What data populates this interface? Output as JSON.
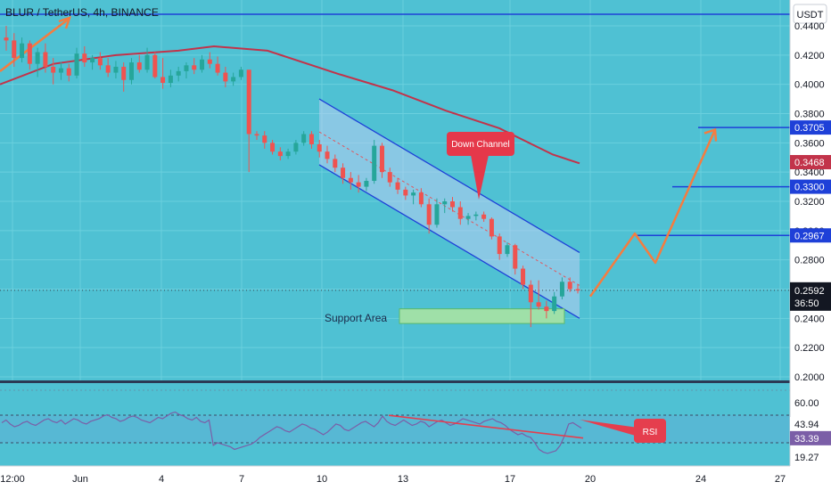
{
  "header": {
    "title": "BLUR / TetherUS, 4h, BINANCE"
  },
  "colors": {
    "background": "#4fc1d3",
    "up_candle": "#26a69a",
    "down_candle": "#ef5350",
    "ma_line": "#c2334a",
    "channel_line": "#1e40d8",
    "channel_fill": "#b9cdf2",
    "level_line": "#1e40d8",
    "projection": "#f57c3f",
    "support_fill": "#9fe0a8",
    "rsi_line": "#7b5ea7",
    "rsi_trend": "#e53e4e"
  },
  "price_axis": {
    "currency": "USDT",
    "ticks": [
      "0.4400",
      "0.4200",
      "0.4000",
      "0.3800",
      "0.3600",
      "0.3400",
      "0.3200",
      "0.3000",
      "0.2800",
      "0.2600",
      "0.2400",
      "0.2200",
      "0.2000"
    ],
    "badges": [
      {
        "label": "0.3705",
        "kind": "level"
      },
      {
        "label": "0.3468",
        "kind": "ma"
      },
      {
        "label": "0.3300",
        "kind": "level"
      },
      {
        "label": "0.2967",
        "kind": "level"
      }
    ],
    "current_price": "0.2592",
    "countdown": "36:50"
  },
  "rsi_axis": {
    "ticks": [
      "60.00",
      "19.27"
    ],
    "badges": [
      {
        "label": "43.94",
        "kind": "plain"
      },
      {
        "label": "33.39",
        "kind": "rsi"
      }
    ]
  },
  "time_axis": {
    "labels": [
      "12:00",
      "Jun",
      "4",
      "7",
      "10",
      "13",
      "17",
      "20",
      "24",
      "27"
    ]
  },
  "annotations": {
    "down_channel": "Down Channel",
    "support_area": "Support Area",
    "rsi": "RSI"
  },
  "chart_data": {
    "type": "candlestick",
    "title": "BLUR / TetherUS, 4h, BINANCE",
    "ylim": [
      0.2,
      0.45
    ],
    "candles_approx": [
      [
        0.432,
        0.44,
        0.423,
        0.43
      ],
      [
        0.43,
        0.435,
        0.412,
        0.418
      ],
      [
        0.418,
        0.432,
        0.415,
        0.428
      ],
      [
        0.428,
        0.43,
        0.41,
        0.414
      ],
      [
        0.414,
        0.425,
        0.405,
        0.422
      ],
      [
        0.422,
        0.428,
        0.408,
        0.412
      ],
      [
        0.412,
        0.418,
        0.4,
        0.408
      ],
      [
        0.408,
        0.415,
        0.403,
        0.411
      ],
      [
        0.411,
        0.414,
        0.402,
        0.406
      ],
      [
        0.406,
        0.425,
        0.404,
        0.421
      ],
      [
        0.421,
        0.426,
        0.412,
        0.415
      ],
      [
        0.415,
        0.42,
        0.41,
        0.418
      ],
      [
        0.418,
        0.422,
        0.41,
        0.413
      ],
      [
        0.413,
        0.418,
        0.405,
        0.408
      ],
      [
        0.408,
        0.416,
        0.404,
        0.412
      ],
      [
        0.412,
        0.415,
        0.395,
        0.403
      ],
      [
        0.403,
        0.418,
        0.4,
        0.415
      ],
      [
        0.415,
        0.42,
        0.408,
        0.41
      ],
      [
        0.41,
        0.425,
        0.408,
        0.42
      ],
      [
        0.42,
        0.422,
        0.404,
        0.405
      ],
      [
        0.405,
        0.418,
        0.397,
        0.401
      ],
      [
        0.401,
        0.41,
        0.398,
        0.406
      ],
      [
        0.406,
        0.412,
        0.402,
        0.409
      ],
      [
        0.409,
        0.415,
        0.404,
        0.413
      ],
      [
        0.413,
        0.418,
        0.407,
        0.41
      ],
      [
        0.41,
        0.42,
        0.408,
        0.417
      ],
      [
        0.417,
        0.422,
        0.411,
        0.414
      ],
      [
        0.414,
        0.419,
        0.406,
        0.408
      ],
      [
        0.408,
        0.412,
        0.398,
        0.402
      ],
      [
        0.402,
        0.408,
        0.399,
        0.405
      ],
      [
        0.405,
        0.412,
        0.403,
        0.41
      ],
      [
        0.41,
        0.409,
        0.34,
        0.366
      ],
      [
        0.366,
        0.368,
        0.362,
        0.365
      ],
      [
        0.365,
        0.368,
        0.356,
        0.36
      ],
      [
        0.36,
        0.362,
        0.352,
        0.354
      ],
      [
        0.354,
        0.357,
        0.348,
        0.351
      ],
      [
        0.351,
        0.356,
        0.349,
        0.354
      ],
      [
        0.354,
        0.362,
        0.352,
        0.36
      ],
      [
        0.36,
        0.368,
        0.358,
        0.366
      ],
      [
        0.366,
        0.368,
        0.356,
        0.359
      ],
      [
        0.359,
        0.362,
        0.35,
        0.354
      ],
      [
        0.354,
        0.358,
        0.346,
        0.349
      ],
      [
        0.349,
        0.352,
        0.34,
        0.343
      ],
      [
        0.343,
        0.346,
        0.332,
        0.336
      ],
      [
        0.336,
        0.34,
        0.328,
        0.333
      ],
      [
        0.333,
        0.338,
        0.326,
        0.33
      ],
      [
        0.33,
        0.336,
        0.327,
        0.334
      ],
      [
        0.334,
        0.362,
        0.332,
        0.358
      ],
      [
        0.358,
        0.36,
        0.336,
        0.34
      ],
      [
        0.34,
        0.343,
        0.33,
        0.333
      ],
      [
        0.333,
        0.336,
        0.325,
        0.328
      ],
      [
        0.328,
        0.33,
        0.321,
        0.324
      ],
      [
        0.324,
        0.328,
        0.318,
        0.326
      ],
      [
        0.326,
        0.329,
        0.316,
        0.318
      ],
      [
        0.318,
        0.322,
        0.298,
        0.304
      ],
      [
        0.304,
        0.322,
        0.302,
        0.318
      ],
      [
        0.318,
        0.322,
        0.312,
        0.32
      ],
      [
        0.32,
        0.323,
        0.313,
        0.316
      ],
      [
        0.316,
        0.32,
        0.304,
        0.308
      ],
      [
        0.308,
        0.312,
        0.304,
        0.31
      ],
      [
        0.31,
        0.313,
        0.307,
        0.311
      ],
      [
        0.311,
        0.313,
        0.306,
        0.308
      ],
      [
        0.308,
        0.309,
        0.294,
        0.296
      ],
      [
        0.296,
        0.298,
        0.28,
        0.284
      ],
      [
        0.284,
        0.292,
        0.282,
        0.29
      ],
      [
        0.29,
        0.291,
        0.27,
        0.274
      ],
      [
        0.274,
        0.276,
        0.26,
        0.263
      ],
      [
        0.263,
        0.266,
        0.234,
        0.251
      ],
      [
        0.251,
        0.266,
        0.246,
        0.248
      ],
      [
        0.248,
        0.252,
        0.24,
        0.245
      ],
      [
        0.245,
        0.258,
        0.243,
        0.255
      ],
      [
        0.255,
        0.268,
        0.253,
        0.265
      ],
      [
        0.265,
        0.268,
        0.258,
        0.26
      ],
      [
        0.26,
        0.263,
        0.257,
        0.259
      ]
    ],
    "moving_average_approx": [
      [
        0,
        0.4
      ],
      [
        60,
        0.414
      ],
      [
        130,
        0.42
      ],
      [
        200,
        0.423
      ],
      [
        240,
        0.426
      ],
      [
        300,
        0.423
      ],
      [
        380,
        0.407
      ],
      [
        440,
        0.396
      ],
      [
        500,
        0.382
      ],
      [
        560,
        0.37
      ],
      [
        620,
        0.352
      ],
      [
        650,
        0.346
      ]
    ],
    "levels": [
      0.3705,
      0.33,
      0.2967
    ],
    "channel": {
      "upper": [
        [
          358,
          0.39
        ],
        [
          650,
          0.285
        ]
      ],
      "lower": [
        [
          358,
          0.345
        ],
        [
          650,
          0.24
        ]
      ]
    },
    "support_area": [
      0.2365,
      0.2465
    ],
    "projection_path": [
      [
        662,
        0.255
      ],
      [
        712,
        0.298
      ],
      [
        735,
        0.278
      ],
      [
        802,
        0.369
      ]
    ],
    "rsi": {
      "last": 33.39,
      "ticks": [
        60.0,
        19.27
      ]
    }
  }
}
